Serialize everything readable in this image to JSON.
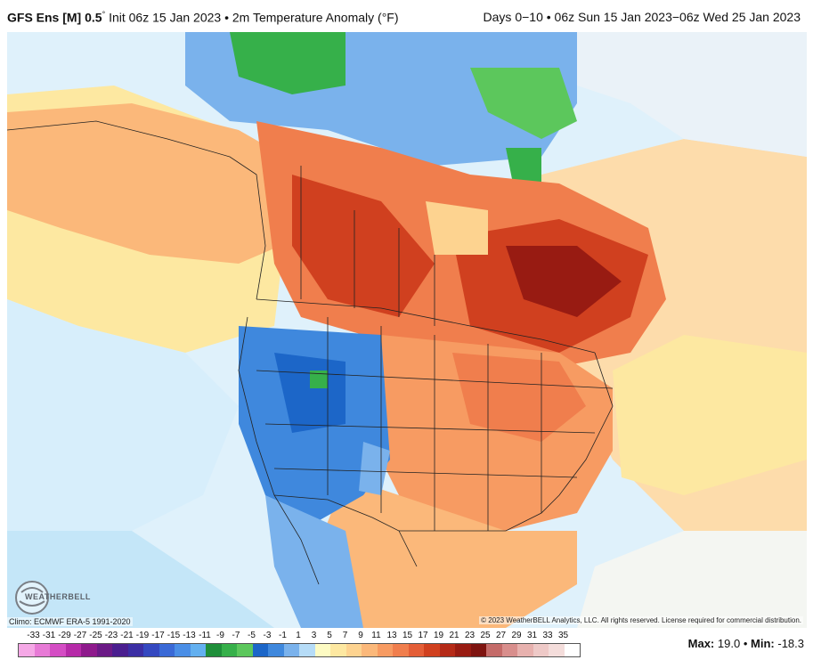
{
  "header": {
    "model": "GFS Ens [M] 0.5",
    "degree_symbol": "°",
    "init": "Init 06z 15 Jan 2023",
    "bullet": "•",
    "field": "2m Temperature Anomaly (°F)",
    "range": "Days 0−10 • 06z Sun 15 Jan 2023−06z Wed 25 Jan 2023"
  },
  "footer": {
    "climo": "Climo: ECMWF ERA-5 1991-2020",
    "copyright": "© 2023 WeatherBELL Analytics, LLC. All rights reserved. License required for commercial distribution.",
    "max_label": "Max:",
    "max_value": "19.0",
    "sep": "•",
    "min_label": "Min:",
    "min_value": "-18.3"
  },
  "logo": {
    "text": "WEATHERBELL",
    "icon": "weatherbell-logo-icon"
  },
  "legend": {
    "labels": [
      "-33",
      "-31",
      "-29",
      "-27",
      "-25",
      "-23",
      "-21",
      "-19",
      "-17",
      "-15",
      "-13",
      "-11",
      "-9",
      "-7",
      "-5",
      "-3",
      "-1",
      "1",
      "3",
      "5",
      "7",
      "9",
      "11",
      "13",
      "15",
      "17",
      "19",
      "21",
      "23",
      "25",
      "27",
      "29",
      "31",
      "33",
      "35"
    ],
    "colors": [
      "#f5a8e6",
      "#e77ad6",
      "#d44dc4",
      "#b62aa8",
      "#8e1a8c",
      "#6b1a86",
      "#4a1e8f",
      "#3b2ea4",
      "#3448c0",
      "#3a69d6",
      "#4a8ee6",
      "#63b0f0",
      "#1f8f3a",
      "#36b04a",
      "#5cc75c",
      "#1c66c8",
      "#3f88dd",
      "#7ab2ec",
      "#b6dcf7",
      "#fdfbc3",
      "#fde8a1",
      "#fdd390",
      "#fbb87a",
      "#f79b62",
      "#f07e4d",
      "#e45e37",
      "#d0401f",
      "#b52a17",
      "#981b12",
      "#7e1410",
      "#c46b69",
      "#d88e8c",
      "#e7b1ae",
      "#eec9c7",
      "#f4dddb",
      "#ffffff"
    ],
    "units": "°F"
  }
}
